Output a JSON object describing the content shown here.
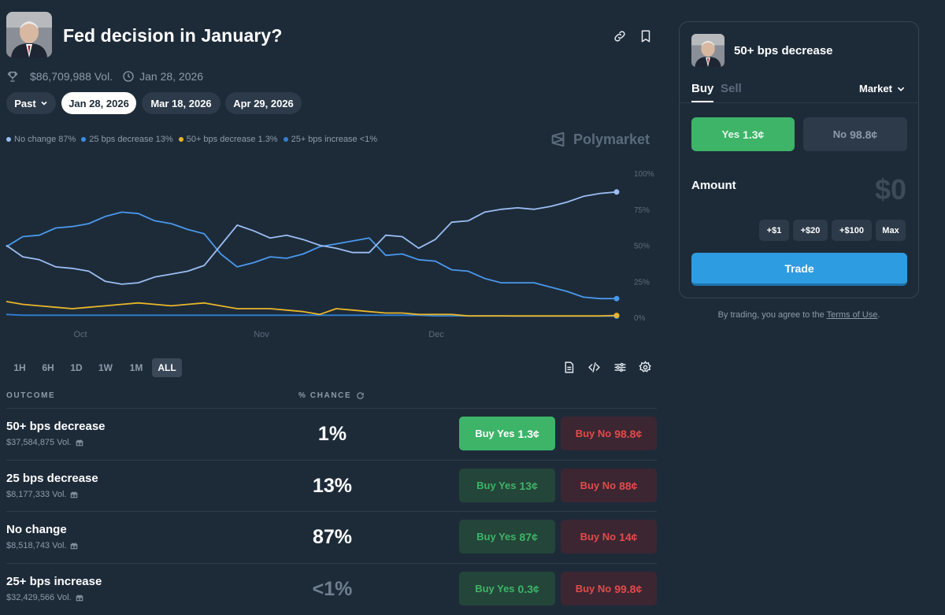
{
  "header": {
    "title": "Fed decision in January?",
    "volume": "$86,709,988 Vol.",
    "end_date": "Jan 28, 2026"
  },
  "date_pills": [
    {
      "label": "Past",
      "active": false
    },
    {
      "label": "Jan 28, 2026",
      "active": true
    },
    {
      "label": "Mar 18, 2026",
      "active": false
    },
    {
      "label": "Apr 29, 2026",
      "active": false
    }
  ],
  "legend": [
    {
      "label": "No change 87%",
      "color": "#9bbdf2"
    },
    {
      "label": "25 bps decrease 13%",
      "color": "#3a8fe6"
    },
    {
      "label": "50+ bps decrease 1.3%",
      "color": "#e9b52a"
    },
    {
      "label": "25+ bps increase <1%",
      "color": "#2f7fd1"
    }
  ],
  "brand": "Polymarket",
  "chart_data": {
    "type": "line",
    "x_ticks": [
      "Oct",
      "Nov",
      "Dec"
    ],
    "y_ticks": [
      "100%",
      "75%",
      "50%",
      "25%",
      "0%"
    ],
    "ylim": [
      0,
      100
    ],
    "x_count": 38,
    "series": [
      {
        "name": "No change",
        "color": "#9bbdf2",
        "values": [
          50,
          42,
          40,
          35,
          34,
          32,
          25,
          23,
          24,
          28,
          30,
          32,
          36,
          50,
          64,
          60,
          55,
          57,
          54,
          50,
          48,
          45,
          45,
          57,
          56,
          48,
          54,
          66,
          67,
          73,
          75,
          76,
          75,
          77,
          80,
          84,
          86,
          87
        ]
      },
      {
        "name": "25 bps decrease",
        "color": "#4a98ec",
        "values": [
          49,
          56,
          57,
          62,
          63,
          65,
          70,
          73,
          72,
          67,
          65,
          61,
          58,
          44,
          35,
          38,
          42,
          41,
          44,
          49,
          51,
          53,
          55,
          43,
          44,
          40,
          39,
          33,
          32,
          27,
          24,
          24,
          24,
          21,
          18,
          14,
          13,
          13
        ]
      },
      {
        "name": "50+ bps decrease",
        "color": "#e9b52a",
        "values": [
          11,
          9,
          8,
          7,
          6,
          7,
          8,
          9,
          10,
          9,
          8,
          9,
          10,
          8,
          6,
          6,
          6,
          5,
          4,
          2,
          6,
          5,
          4,
          3,
          3,
          2,
          2,
          2,
          1,
          1,
          1,
          1,
          1,
          1,
          1,
          1,
          1,
          1.3
        ]
      },
      {
        "name": "25+ bps increase",
        "color": "#2f7fd1",
        "values": [
          2,
          1.5,
          1.5,
          1.5,
          1.5,
          1.5,
          1.5,
          1.5,
          1.5,
          1.5,
          1.5,
          1.5,
          1.5,
          1.5,
          1.5,
          1.5,
          1.5,
          1.5,
          1.5,
          1.5,
          1.5,
          1.5,
          1.5,
          1.5,
          1.5,
          1.5,
          1,
          1,
          1,
          1,
          1,
          0.8,
          0.8,
          0.8,
          0.8,
          0.8,
          0.8,
          0.8
        ]
      }
    ]
  },
  "ranges": [
    {
      "label": "1H",
      "active": false
    },
    {
      "label": "6H",
      "active": false
    },
    {
      "label": "1D",
      "active": false
    },
    {
      "label": "1W",
      "active": false
    },
    {
      "label": "1M",
      "active": false
    },
    {
      "label": "ALL",
      "active": true
    }
  ],
  "table": {
    "col_outcome": "OUTCOME",
    "col_chance": "% CHANCE",
    "rows": [
      {
        "name": "50+ bps decrease",
        "volume": "$37,584,875 Vol.",
        "chance": "1%",
        "buy_yes": "Buy Yes",
        "yes_price": "1.3¢",
        "buy_no": "Buy No",
        "no_price": "98.8¢"
      },
      {
        "name": "25 bps decrease",
        "volume": "$8,177,333 Vol.",
        "chance": "13%",
        "buy_yes": "Buy Yes",
        "yes_price": "13¢",
        "buy_no": "Buy No",
        "no_price": "88¢"
      },
      {
        "name": "No change",
        "volume": "$8,518,743 Vol.",
        "chance": "87%",
        "buy_yes": "Buy Yes",
        "yes_price": "87¢",
        "buy_no": "Buy No",
        "no_price": "14¢"
      },
      {
        "name": "25+ bps increase",
        "volume": "$32,429,566 Vol.",
        "chance": "<1%",
        "buy_yes": "Buy Yes",
        "yes_price": "0.3¢",
        "buy_no": "Buy No",
        "no_price": "99.8¢"
      }
    ]
  },
  "panel": {
    "title": "50+ bps decrease",
    "tab_buy": "Buy",
    "tab_sell": "Sell",
    "order_type": "Market",
    "yes_label": "Yes",
    "yes_price": "1.3¢",
    "no_label": "No",
    "no_price": "98.8¢",
    "amount_label": "Amount",
    "amount_value": "$0",
    "chips": [
      "+$1",
      "+$20",
      "+$100",
      "Max"
    ],
    "trade_label": "Trade",
    "terms_prefix": "By trading, you agree to the",
    "terms_link": "Terms of Use",
    "terms_suffix": "."
  }
}
